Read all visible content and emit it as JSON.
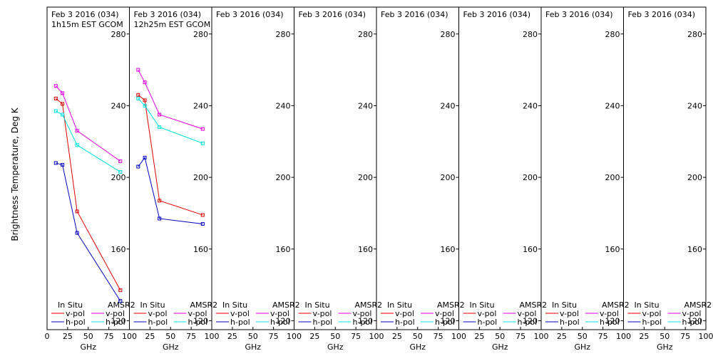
{
  "colors": {
    "insitu_v": "#e00000",
    "insitu_h": "#0000c0",
    "amsr2_v": "#e000e0",
    "amsr2_h": "#00e0e0",
    "axis": "#000000"
  },
  "chart_data": {
    "type": "line",
    "ylabel": "Brightness Temperature, Deg K",
    "xlabel": "GHz",
    "ylim": [
      115,
      295
    ],
    "yticks": [
      120,
      160,
      200,
      240,
      280
    ],
    "xlim": [
      0,
      100
    ],
    "xticks": [
      0,
      25,
      50,
      75,
      100
    ],
    "legend": {
      "left_header": "In Situ",
      "right_header": "AMSR2",
      "v_label": "v-pol",
      "h_label": "h-pol"
    },
    "panels": [
      {
        "title": "Feb 3 2016 (034)",
        "subtitle": "1h15m EST GCOM",
        "series": [
          {
            "group": "insitu",
            "pol": "v",
            "x": [
              10.65,
              18.7,
              36.5,
              89
            ],
            "y": [
              244,
              241,
              181,
              137
            ]
          },
          {
            "group": "insitu",
            "pol": "h",
            "x": [
              10.65,
              18.7,
              36.5,
              89
            ],
            "y": [
              208,
              207,
              169,
              131
            ]
          },
          {
            "group": "amsr2",
            "pol": "v",
            "x": [
              10.65,
              18.7,
              36.5,
              89
            ],
            "y": [
              251,
              247,
              226,
              209
            ]
          },
          {
            "group": "amsr2",
            "pol": "h",
            "x": [
              10.65,
              18.7,
              36.5,
              89
            ],
            "y": [
              237,
              235,
              218,
              203
            ]
          }
        ]
      },
      {
        "title": "Feb 3 2016 (034)",
        "subtitle": "12h25m EST GCOM",
        "series": [
          {
            "group": "insitu",
            "pol": "v",
            "x": [
              10.65,
              18.7,
              36.5,
              89
            ],
            "y": [
              246,
              243,
              187,
              179
            ]
          },
          {
            "group": "insitu",
            "pol": "h",
            "x": [
              10.65,
              18.7,
              36.5,
              89
            ],
            "y": [
              206,
              211,
              177,
              174
            ]
          },
          {
            "group": "amsr2",
            "pol": "v",
            "x": [
              10.65,
              18.7,
              36.5,
              89
            ],
            "y": [
              260,
              253,
              235,
              227
            ]
          },
          {
            "group": "amsr2",
            "pol": "h",
            "x": [
              10.65,
              18.7,
              36.5,
              89
            ],
            "y": [
              244,
              240,
              228,
              219
            ]
          }
        ]
      },
      {
        "title": "Feb 3 2016 (034)",
        "subtitle": "",
        "series": []
      },
      {
        "title": "Feb 3 2016 (034)",
        "subtitle": "",
        "series": []
      },
      {
        "title": "Feb 3 2016 (034)",
        "subtitle": "",
        "series": []
      },
      {
        "title": "Feb 3 2016 (034)",
        "subtitle": "",
        "series": []
      },
      {
        "title": "Feb 3 2016 (034)",
        "subtitle": "",
        "series": []
      },
      {
        "title": "Feb 3 2016 (034)",
        "subtitle": "",
        "series": []
      }
    ]
  }
}
